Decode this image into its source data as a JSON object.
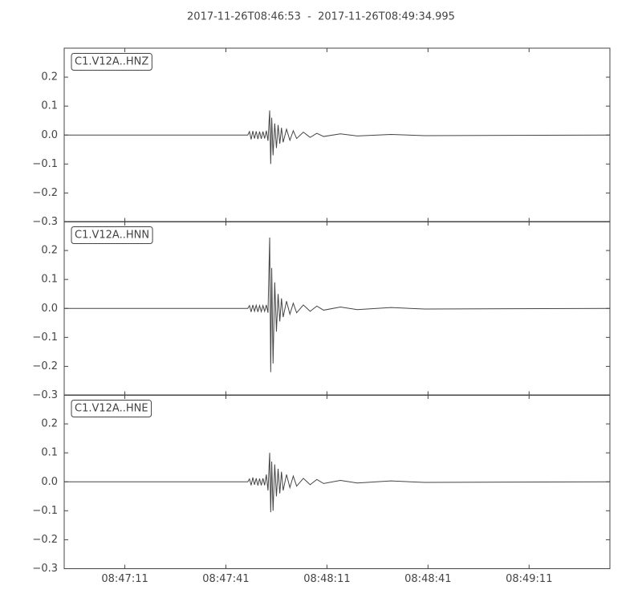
{
  "chart_data": [
    {
      "type": "line",
      "title": "2017-11-26T08:46:53  -  2017-11-26T08:49:34.995",
      "xlim": [
        "08:46:53",
        "08:49:34.995"
      ],
      "ylim": [
        -0.3,
        0.3
      ],
      "yticks": [
        {
          "value": -0.3,
          "label": "−0.3"
        },
        {
          "value": -0.2,
          "label": "−0.2"
        },
        {
          "value": -0.1,
          "label": "−0.1"
        },
        {
          "value": 0,
          "label": "0.0"
        },
        0.1,
        0.2
      ],
      "x": [
        "08:46:53",
        "08:47:47.5",
        "08:47:48",
        "08:47:48.5",
        "08:47:49",
        "08:47:49.5",
        "08:47:50",
        "08:47:50.5",
        "08:47:51",
        "08:47:51.5",
        "08:47:52",
        "08:47:52.5",
        "08:47:53",
        "08:47:53.5",
        "08:47:54",
        "08:47:54.3",
        "08:47:54.6",
        "08:47:55",
        "08:47:55.5",
        "08:47:56",
        "08:47:56.5",
        "08:47:57",
        "08:47:57.5",
        "08:47:58",
        "08:47:59",
        "08:48:00",
        "08:48:01",
        "08:48:02",
        "08:48:04",
        "08:48:06",
        "08:48:08",
        "08:48:10",
        "08:48:15",
        "08:48:20",
        "08:48:30",
        "08:48:40",
        "08:49:34.995"
      ],
      "series": [
        {
          "name": "C1.V12A..HNZ",
          "color": "#444444",
          "values": [
            0,
            0,
            0.012,
            -0.015,
            0.014,
            -0.012,
            0.013,
            -0.014,
            0.012,
            -0.013,
            0.012,
            -0.012,
            0.015,
            -0.02,
            0.085,
            -0.1,
            0.06,
            -0.07,
            0.04,
            -0.045,
            0.035,
            -0.03,
            0.025,
            -0.025,
            0.02,
            -0.018,
            0.015,
            -0.012,
            0.01,
            -0.008,
            0.006,
            -0.005,
            0.004,
            -0.003,
            0.002,
            -0.002,
            0
          ]
        }
      ]
    },
    {
      "type": "line",
      "xlim": [
        "08:46:53",
        "08:49:34.995"
      ],
      "ylim": [
        -0.3,
        0.3
      ],
      "yticks": [
        {
          "value": -0.3,
          "label": "−0.3"
        },
        {
          "value": -0.2,
          "label": "−0.2"
        },
        {
          "value": -0.1,
          "label": "−0.1"
        },
        {
          "value": 0,
          "label": "0.0"
        },
        0.1,
        0.2
      ],
      "x": [
        "08:46:53",
        "08:47:47.5",
        "08:47:48",
        "08:47:48.5",
        "08:47:49",
        "08:47:49.5",
        "08:47:50",
        "08:47:50.5",
        "08:47:51",
        "08:47:51.5",
        "08:47:52",
        "08:47:52.5",
        "08:47:53",
        "08:47:53.5",
        "08:47:54",
        "08:47:54.3",
        "08:47:54.6",
        "08:47:55",
        "08:47:55.5",
        "08:47:56",
        "08:47:56.5",
        "08:47:57",
        "08:47:57.5",
        "08:47:58",
        "08:47:59",
        "08:48:00",
        "08:48:01",
        "08:48:02",
        "08:48:04",
        "08:48:06",
        "08:48:08",
        "08:48:10",
        "08:48:15",
        "08:48:20",
        "08:48:30",
        "08:48:40",
        "08:49:34.995"
      ],
      "series": [
        {
          "name": "C1.V12A..HNN",
          "color": "#444444",
          "values": [
            0,
            0,
            0.01,
            -0.012,
            0.012,
            -0.01,
            0.011,
            -0.012,
            0.01,
            -0.011,
            0.01,
            -0.01,
            0.012,
            -0.015,
            0.245,
            -0.22,
            0.14,
            -0.19,
            0.09,
            -0.08,
            0.05,
            -0.045,
            0.035,
            -0.03,
            0.025,
            -0.02,
            0.018,
            -0.015,
            0.012,
            -0.01,
            0.008,
            -0.006,
            0.005,
            -0.004,
            0.003,
            -0.002,
            0
          ]
        }
      ]
    },
    {
      "type": "line",
      "xlim": [
        "08:46:53",
        "08:49:34.995"
      ],
      "ylim": [
        -0.3,
        0.3
      ],
      "yticks": [
        {
          "value": -0.3,
          "label": "−0.3"
        },
        {
          "value": -0.2,
          "label": "−0.2"
        },
        {
          "value": -0.1,
          "label": "−0.1"
        },
        {
          "value": 0,
          "label": "0.0"
        },
        0.1,
        0.2
      ],
      "xticks": [
        "08:47:11",
        "08:47:41",
        "08:48:11",
        "08:48:41",
        "08:49:11"
      ],
      "x": [
        "08:46:53",
        "08:47:47.5",
        "08:47:48",
        "08:47:48.5",
        "08:47:49",
        "08:47:49.5",
        "08:47:50",
        "08:47:50.5",
        "08:47:51",
        "08:47:51.5",
        "08:47:52",
        "08:47:52.5",
        "08:47:53",
        "08:47:53.5",
        "08:47:54",
        "08:47:54.3",
        "08:47:54.6",
        "08:47:55",
        "08:47:55.5",
        "08:47:56",
        "08:47:56.5",
        "08:47:57",
        "08:47:57.5",
        "08:47:58",
        "08:47:59",
        "08:48:00",
        "08:48:01",
        "08:48:02",
        "08:48:04",
        "08:48:06",
        "08:48:08",
        "08:48:10",
        "08:48:15",
        "08:48:20",
        "08:48:30",
        "08:48:40",
        "08:49:34.995"
      ],
      "series": [
        {
          "name": "C1.V12A..HNE",
          "color": "#444444",
          "values": [
            0,
            0,
            0.01,
            -0.012,
            0.015,
            -0.01,
            0.012,
            -0.013,
            0.011,
            -0.012,
            0.012,
            -0.012,
            0.025,
            -0.03,
            0.1,
            -0.105,
            0.07,
            -0.1,
            0.06,
            -0.05,
            0.045,
            -0.04,
            0.035,
            -0.03,
            0.025,
            -0.02,
            0.02,
            -0.015,
            0.012,
            -0.01,
            0.008,
            -0.006,
            0.005,
            -0.004,
            0.003,
            -0.002,
            0
          ]
        }
      ]
    }
  ]
}
